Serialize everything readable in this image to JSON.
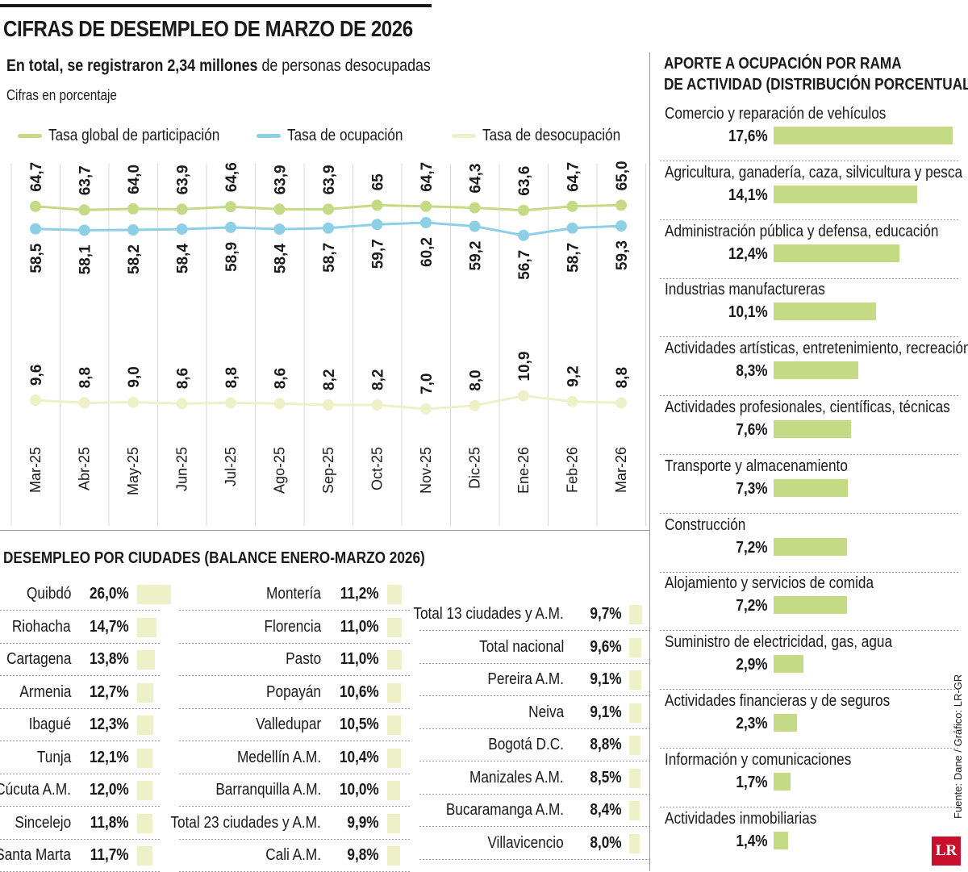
{
  "header": {
    "title": "CIFRAS DE DESEMPLEO DE MARZO DE 2026",
    "subtitle_bold": "En total, se registraron 2,34 millones",
    "subtitle_rest": " de personas desocupadas",
    "units_note": "Cifras en porcentaje"
  },
  "colors": {
    "participation": "#c5da84",
    "occupation": "#8ccfe6",
    "unemployment": "#eef0c8",
    "bars": "#c5da84",
    "city_bars": "#eef0c8",
    "logo": "#c8102e"
  },
  "chart_data": [
    {
      "type": "line",
      "x": [
        "Mar-25",
        "Abr-25",
        "May-25",
        "Jun-25",
        "Jul-25",
        "Ago-25",
        "Sep-25",
        "Oct-25",
        "Nov-25",
        "Dic-25",
        "Ene-26",
        "Feb-26",
        "Mar-26"
      ],
      "series": [
        {
          "name": "Tasa global de participación",
          "values": [
            64.7,
            63.7,
            64.0,
            63.9,
            64.6,
            63.9,
            63.9,
            65,
            64.7,
            64.3,
            63.6,
            64.7,
            65.0
          ],
          "labels": [
            "64,7",
            "63,7",
            "64,0",
            "63,9",
            "64,6",
            "63,9",
            "63,9",
            "65",
            "64,7",
            "64,3",
            "63,6",
            "64,7",
            "65,0"
          ]
        },
        {
          "name": "Tasa de ocupación",
          "values": [
            58.5,
            58.1,
            58.2,
            58.4,
            58.9,
            58.4,
            58.7,
            59.7,
            60.2,
            59.2,
            56.7,
            58.7,
            59.3
          ],
          "labels": [
            "58,5",
            "58,1",
            "58,2",
            "58,4",
            "58,9",
            "58,4",
            "58,7",
            "59,7",
            "60,2",
            "59,2",
            "56,7",
            "58,7",
            "59,3"
          ]
        },
        {
          "name": "Tasa de desocupación",
          "values": [
            9.6,
            8.8,
            9.0,
            8.6,
            8.8,
            8.6,
            8.2,
            8.2,
            7.0,
            8.0,
            10.9,
            9.2,
            8.8
          ],
          "labels": [
            "9,6",
            "8,8",
            "9,0",
            "8,6",
            "8,8",
            "8,6",
            "8,2",
            "8,2",
            "7,0",
            "8,0",
            "10,9",
            "9,2",
            "8,8"
          ]
        }
      ],
      "grid": true,
      "legend": "top"
    },
    {
      "type": "bar",
      "title": "DESEMPLEO POR CIUDADES (BALANCE ENERO-MARZO 2026)",
      "columns": [
        [
          {
            "name": "Quibdó",
            "value": 26.0,
            "label": "26,0%"
          },
          {
            "name": "Riohacha",
            "value": 14.7,
            "label": "14,7%"
          },
          {
            "name": "Cartagena",
            "value": 13.8,
            "label": "13,8%"
          },
          {
            "name": "Armenia",
            "value": 12.7,
            "label": "12,7%"
          },
          {
            "name": "Ibagué",
            "value": 12.3,
            "label": "12,3%"
          },
          {
            "name": "Tunja",
            "value": 12.1,
            "label": "12,1%"
          },
          {
            "name": "Cúcuta A.M.",
            "value": 12.0,
            "label": "12,0%"
          },
          {
            "name": "Sincelejo",
            "value": 11.8,
            "label": "11,8%"
          },
          {
            "name": "Santa Marta",
            "value": 11.7,
            "label": "11,7%"
          }
        ],
        [
          {
            "name": "Montería",
            "value": 11.2,
            "label": "11,2%"
          },
          {
            "name": "Florencia",
            "value": 11.0,
            "label": "11,0%"
          },
          {
            "name": "Pasto",
            "value": 11.0,
            "label": "11,0%"
          },
          {
            "name": "Popayán",
            "value": 10.6,
            "label": "10,6%"
          },
          {
            "name": "Valledupar",
            "value": 10.5,
            "label": "10,5%"
          },
          {
            "name": "Medellín A.M.",
            "value": 10.4,
            "label": "10,4%"
          },
          {
            "name": "Barranquilla A.M.",
            "value": 10.0,
            "label": "10,0%"
          },
          {
            "name": "Total 23 ciudades y A.M.",
            "value": 9.9,
            "label": "9,9%"
          },
          {
            "name": "Cali A.M.",
            "value": 9.8,
            "label": "9,8%"
          }
        ],
        [
          {
            "name": "Total 13 ciudades y A.M.",
            "value": 9.7,
            "label": "9,7%"
          },
          {
            "name": "Total nacional",
            "value": 9.6,
            "label": "9,6%"
          },
          {
            "name": "Pereira A.M.",
            "value": 9.1,
            "label": "9,1%"
          },
          {
            "name": "Neiva",
            "value": 9.1,
            "label": "9,1%"
          },
          {
            "name": "Bogotá D.C.",
            "value": 8.8,
            "label": "8,8%"
          },
          {
            "name": "Manizales A.M.",
            "value": 8.5,
            "label": "8,5%"
          },
          {
            "name": "Bucaramanga A.M.",
            "value": 8.4,
            "label": "8,4%"
          },
          {
            "name": "Villavicencio",
            "value": 8.0,
            "label": "8,0%"
          }
        ]
      ]
    },
    {
      "type": "bar",
      "title": "APORTE A OCUPACIÓN POR RAMA DE ACTIVIDAD (DISTRIBUCIÓN PORCENTUAL)",
      "title_lines": [
        "APORTE A OCUPACIÓN POR RAMA",
        "DE ACTIVIDAD (DISTRIBUCIÓN PORCENTUAL)"
      ],
      "categories": [
        "Comercio y reparación de vehículos",
        "Agricultura, ganadería, caza, silvicultura y pesca",
        "Administración pública y defensa, educación",
        "Industrias manufactureras",
        "Actividades artísticas, entretenimiento, recreación",
        "Actividades profesionales, científicas, técnicas",
        "Transporte y almacenamiento",
        "Construcción",
        "Alojamiento y servicios de comida",
        "Suministro de electricidad, gas, agua",
        "Actividades financieras y de seguros",
        "Información y comunicaciones",
        "Actividades inmobiliarias"
      ],
      "values": [
        17.6,
        14.1,
        12.4,
        10.1,
        8.3,
        7.6,
        7.3,
        7.2,
        7.2,
        2.9,
        2.3,
        1.7,
        1.4
      ],
      "labels": [
        "17,6%",
        "14,1%",
        "12,4%",
        "10,1%",
        "8,3%",
        "7,6%",
        "7,3%",
        "7,2%",
        "7,2%",
        "2,9%",
        "2,3%",
        "1,7%",
        "1,4%"
      ]
    }
  ],
  "footer": {
    "source": "Fuente: Dane / Gráfico: LR-GR",
    "logo_text": "LR"
  }
}
